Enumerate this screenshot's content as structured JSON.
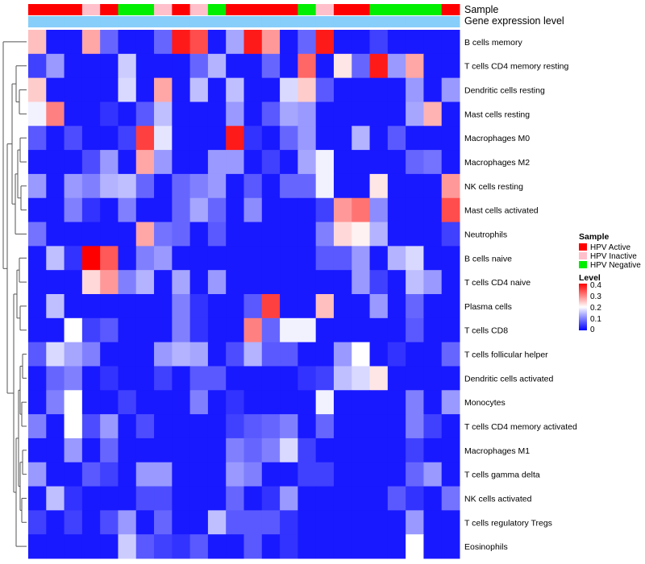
{
  "chart_data": {
    "type": "heatmap",
    "title": "",
    "annotation_track_labels": [
      "Sample",
      "Gene expression level"
    ],
    "rows": [
      "B cells memory",
      "T cells CD4 memory resting",
      "Dendritic cells resting",
      "Mast cells resting",
      "Macrophages M0",
      "Macrophages M2",
      "NK cells resting",
      "Mast cells activated",
      "Neutrophils",
      "B cells naive",
      "T cells CD4 naive",
      "Plasma cells",
      "T cells CD8",
      "T cells follicular helper",
      "Dendritic cells activated",
      "Monocytes",
      "T cells CD4 memory activated",
      "Macrophages M1",
      "T cells gamma delta",
      "NK cells activated",
      "T cells regulatory  Tregs",
      "Eosinophils"
    ],
    "sample_groups": [
      "HPV Active",
      "HPV Active",
      "HPV Active",
      "HPV Inactive",
      "HPV Active",
      "HPV Negative",
      "HPV Negative",
      "HPV Inactive",
      "HPV Active",
      "HPV Inactive",
      "HPV Negative",
      "HPV Active",
      "HPV Active",
      "HPV Active",
      "HPV Active",
      "HPV Negative",
      "HPV Inactive",
      "HPV Active",
      "HPV Active",
      "HPV Negative",
      "HPV Negative",
      "HPV Negative",
      "HPV Negative",
      "HPV Active"
    ],
    "sample_colors": {
      "HPV Active": "#ff0000",
      "HPV Inactive": "#ffc0cb",
      "HPV Negative": "#00ee00"
    },
    "expression_track_color": "#87cefa",
    "color_scale": {
      "min": 0,
      "max": 0.4,
      "low": "#0000ff",
      "mid": "#ffffff",
      "high": "#ff0000",
      "mid_value": 0.2
    },
    "values": [
      [
        0.25,
        0.02,
        0.02,
        0.27,
        0.08,
        0.02,
        0.02,
        0.08,
        0.38,
        0.34,
        0.02,
        0.13,
        0.38,
        0.28,
        0.02,
        0.08,
        0.38,
        0.02,
        0.02,
        0.05,
        0.02,
        0.02,
        0.02,
        0.02
      ],
      [
        0.05,
        0.12,
        0.02,
        0.02,
        0.02,
        0.16,
        0.02,
        0.02,
        0.02,
        0.08,
        0.14,
        0.02,
        0.02,
        0.08,
        0.02,
        0.32,
        0.02,
        0.22,
        0.08,
        0.38,
        0.12,
        0.27,
        0.02,
        0.02
      ],
      [
        0.24,
        0.02,
        0.02,
        0.02,
        0.02,
        0.17,
        0.02,
        0.27,
        0.02,
        0.15,
        0.02,
        0.15,
        0.02,
        0.02,
        0.17,
        0.24,
        0.07,
        0.02,
        0.02,
        0.02,
        0.02,
        0.12,
        0.02,
        0.12
      ],
      [
        0.19,
        0.3,
        0.02,
        0.02,
        0.04,
        0.02,
        0.07,
        0.15,
        0.02,
        0.02,
        0.02,
        0.12,
        0.02,
        0.07,
        0.13,
        0.12,
        0.02,
        0.02,
        0.02,
        0.02,
        0.02,
        0.13,
        0.26,
        0.02
      ],
      [
        0.07,
        0.02,
        0.06,
        0.02,
        0.02,
        0.05,
        0.35,
        0.18,
        0.02,
        0.02,
        0.02,
        0.38,
        0.04,
        0.02,
        0.08,
        0.12,
        0.02,
        0.02,
        0.14,
        0.02,
        0.07,
        0.02,
        0.02,
        0.02
      ],
      [
        0.02,
        0.02,
        0.02,
        0.06,
        0.12,
        0.02,
        0.27,
        0.12,
        0.02,
        0.02,
        0.12,
        0.12,
        0.02,
        0.05,
        0.02,
        0.13,
        0.19,
        0.02,
        0.02,
        0.02,
        0.02,
        0.08,
        0.09,
        0.02
      ],
      [
        0.12,
        0.02,
        0.12,
        0.1,
        0.14,
        0.15,
        0.08,
        0.02,
        0.08,
        0.1,
        0.12,
        0.02,
        0.07,
        0.02,
        0.08,
        0.08,
        0.19,
        0.02,
        0.02,
        0.22,
        0.02,
        0.02,
        0.02,
        0.28
      ],
      [
        0.02,
        0.02,
        0.1,
        0.04,
        0.02,
        0.1,
        0.02,
        0.02,
        0.08,
        0.13,
        0.08,
        0.02,
        0.11,
        0.02,
        0.02,
        0.02,
        0.05,
        0.28,
        0.31,
        0.11,
        0.02,
        0.02,
        0.02,
        0.34
      ],
      [
        0.09,
        0.02,
        0.02,
        0.02,
        0.02,
        0.02,
        0.27,
        0.09,
        0.08,
        0.02,
        0.07,
        0.02,
        0.02,
        0.02,
        0.02,
        0.02,
        0.1,
        0.23,
        0.21,
        0.14,
        0.02,
        0.02,
        0.02,
        0.05
      ],
      [
        0.02,
        0.15,
        0.04,
        0.4,
        0.33,
        0.02,
        0.1,
        0.12,
        0.02,
        0.02,
        0.02,
        0.02,
        0.02,
        0.02,
        0.02,
        0.02,
        0.07,
        0.07,
        0.12,
        0.02,
        0.14,
        0.17,
        0.02,
        0.02
      ],
      [
        0.02,
        0.02,
        0.02,
        0.23,
        0.28,
        0.1,
        0.14,
        0.02,
        0.13,
        0.02,
        0.12,
        0.02,
        0.02,
        0.02,
        0.02,
        0.02,
        0.02,
        0.02,
        0.12,
        0.05,
        0.02,
        0.15,
        0.12,
        0.02
      ],
      [
        0.02,
        0.15,
        0.02,
        0.02,
        0.02,
        0.02,
        0.02,
        0.02,
        0.1,
        0.04,
        0.02,
        0.02,
        0.07,
        0.35,
        0.02,
        0.02,
        0.25,
        0.02,
        0.02,
        0.12,
        0.02,
        0.08,
        0.02,
        0.02
      ],
      [
        0.02,
        0.02,
        0.2,
        0.05,
        0.07,
        0.02,
        0.02,
        0.02,
        0.1,
        0.04,
        0.02,
        0.02,
        0.3,
        0.08,
        0.19,
        0.19,
        0.02,
        0.02,
        0.02,
        0.02,
        0.02,
        0.07,
        0.02,
        0.02
      ],
      [
        0.07,
        0.17,
        0.13,
        0.1,
        0.02,
        0.02,
        0.02,
        0.12,
        0.14,
        0.13,
        0.02,
        0.06,
        0.14,
        0.07,
        0.07,
        0.02,
        0.02,
        0.12,
        0.2,
        0.02,
        0.04,
        0.02,
        0.02,
        0.08
      ],
      [
        0.02,
        0.08,
        0.1,
        0.02,
        0.04,
        0.02,
        0.02,
        0.05,
        0.02,
        0.07,
        0.07,
        0.02,
        0.02,
        0.02,
        0.02,
        0.04,
        0.05,
        0.15,
        0.17,
        0.22,
        0.02,
        0.02,
        0.02,
        0.02
      ],
      [
        0.02,
        0.1,
        0.2,
        0.02,
        0.02,
        0.05,
        0.02,
        0.02,
        0.02,
        0.1,
        0.02,
        0.04,
        0.02,
        0.02,
        0.02,
        0.02,
        0.19,
        0.02,
        0.02,
        0.02,
        0.02,
        0.1,
        0.02,
        0.12
      ],
      [
        0.1,
        0.02,
        0.2,
        0.06,
        0.12,
        0.02,
        0.06,
        0.02,
        0.02,
        0.02,
        0.02,
        0.05,
        0.07,
        0.08,
        0.1,
        0.02,
        0.08,
        0.02,
        0.02,
        0.02,
        0.02,
        0.1,
        0.05,
        0.02
      ],
      [
        0.02,
        0.02,
        0.12,
        0.02,
        0.08,
        0.02,
        0.02,
        0.02,
        0.02,
        0.02,
        0.02,
        0.1,
        0.08,
        0.1,
        0.17,
        0.05,
        0.02,
        0.02,
        0.02,
        0.02,
        0.02,
        0.05,
        0.02,
        0.02
      ],
      [
        0.12,
        0.02,
        0.02,
        0.07,
        0.05,
        0.02,
        0.12,
        0.12,
        0.02,
        0.02,
        0.02,
        0.12,
        0.1,
        0.02,
        0.02,
        0.05,
        0.05,
        0.02,
        0.02,
        0.02,
        0.02,
        0.08,
        0.12,
        0.02
      ],
      [
        0.02,
        0.15,
        0.04,
        0.02,
        0.02,
        0.02,
        0.06,
        0.06,
        0.02,
        0.02,
        0.02,
        0.08,
        0.02,
        0.04,
        0.12,
        0.02,
        0.02,
        0.02,
        0.02,
        0.02,
        0.07,
        0.04,
        0.02,
        0.09
      ],
      [
        0.05,
        0.02,
        0.05,
        0.02,
        0.06,
        0.12,
        0.02,
        0.08,
        0.02,
        0.02,
        0.15,
        0.07,
        0.07,
        0.07,
        0.04,
        0.02,
        0.02,
        0.02,
        0.02,
        0.02,
        0.02,
        0.12,
        0.02,
        0.02
      ],
      [
        0.02,
        0.02,
        0.02,
        0.02,
        0.02,
        0.16,
        0.07,
        0.05,
        0.04,
        0.07,
        0.02,
        0.02,
        0.07,
        0.02,
        0.04,
        0.02,
        0.02,
        0.02,
        0.02,
        0.02,
        0.02,
        0.2,
        0.02,
        0.02
      ]
    ],
    "legend": {
      "sample_title": "Sample",
      "sample_entries": [
        "HPV Active",
        "HPV Inactive",
        "HPV Negative"
      ],
      "level_title": "Level",
      "level_ticks": [
        "0.4",
        "0.3",
        "0.2",
        "0.1",
        "0"
      ]
    }
  }
}
